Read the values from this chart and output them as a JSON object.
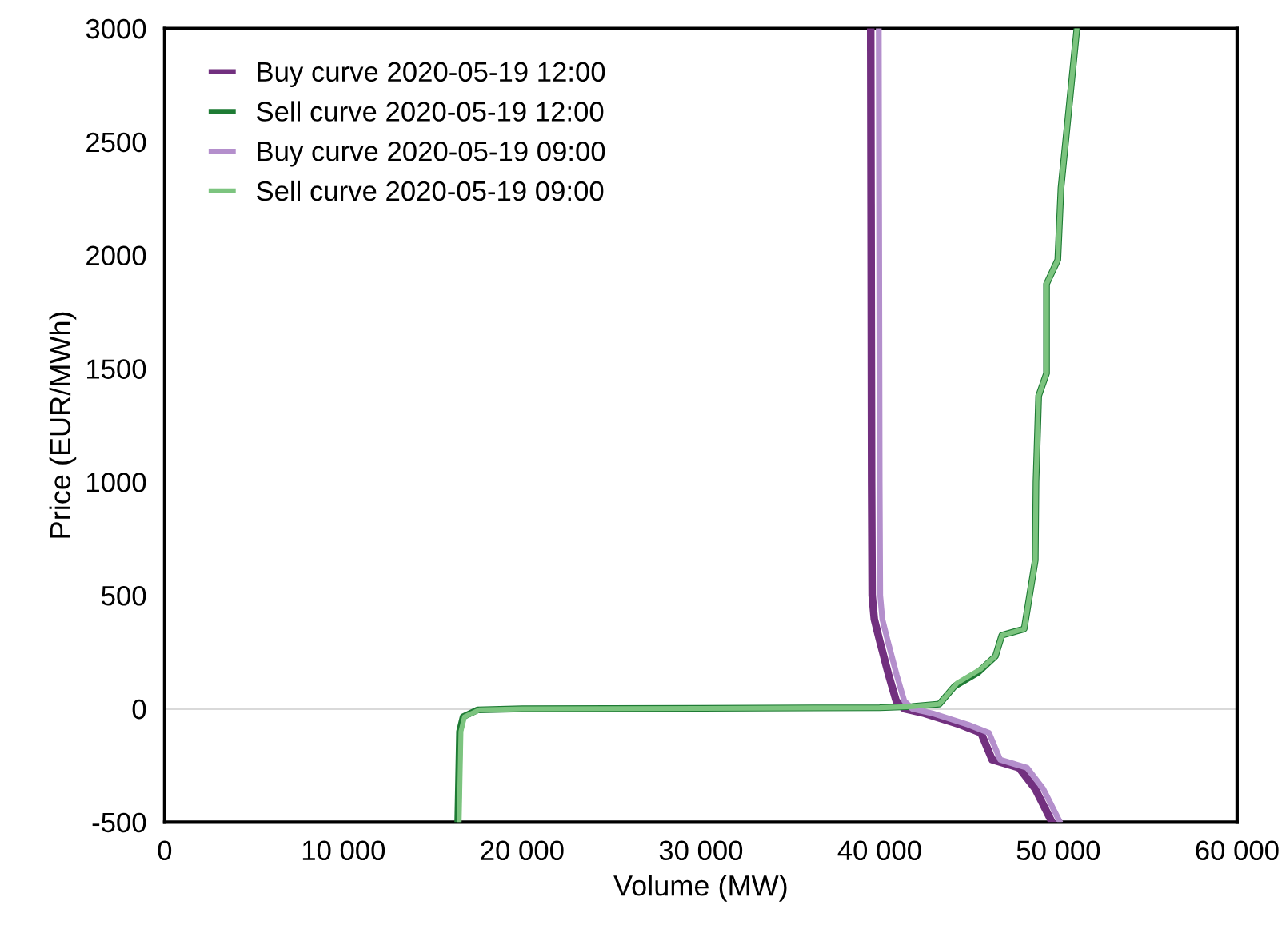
{
  "chart_data": {
    "type": "line",
    "xlabel": "Volume (MW)",
    "ylabel": "Price (EUR/MWh)",
    "xlim": [
      0,
      60000
    ],
    "ylim": [
      -500,
      3000
    ],
    "xticks": [
      0,
      {
        "value": 10000,
        "label": "10 000"
      },
      {
        "value": 20000,
        "label": "20 000"
      },
      {
        "value": 30000,
        "label": "30 000"
      },
      {
        "value": 40000,
        "label": "40 000"
      },
      {
        "value": 50000,
        "label": "50 000"
      },
      {
        "value": 60000,
        "label": "60 000"
      }
    ],
    "yticks": [
      -500,
      0,
      500,
      1000,
      1500,
      2000,
      2500,
      3000
    ],
    "grid": false,
    "legend": "top left",
    "ref_lines": [
      {
        "axis": "y",
        "value": 0,
        "color": "#d9d9d9"
      }
    ],
    "series": [
      {
        "name": "Buy curve 2020-05-19 12:00",
        "color": "#72307f",
        "x": [
          39500,
          39550,
          39580,
          39700,
          40000,
          40500,
          40925,
          41370,
          42500,
          44500,
          45670,
          46300,
          47800,
          48700,
          49600
        ],
        "values": [
          3000,
          1000,
          500,
          395,
          300,
          150,
          35,
          0,
          -20,
          -70,
          -106,
          -225,
          -260,
          -352,
          -493
        ]
      },
      {
        "name": "Sell curve 2020-05-19 12:00",
        "color": "#1e7b34",
        "x": [
          16400,
          16500,
          16700,
          17500,
          20000,
          30000,
          40000,
          41820,
          43340,
          44200,
          45500,
          46480,
          46840,
          48090,
          48710,
          48750,
          48900,
          49340,
          49340,
          49970,
          50150,
          51040
        ],
        "values": [
          -500,
          -100,
          -35,
          -5,
          0,
          2,
          5,
          10,
          21,
          100,
          160,
          232,
          324,
          352,
          655,
          1000,
          1380,
          1479,
          1873,
          1979,
          2296,
          3000
        ]
      },
      {
        "name": "Buy curve 2020-05-19 09:00",
        "color": "#b48fcc",
        "x": [
          39950,
          40000,
          40030,
          40150,
          40450,
          40950,
          41375,
          41820,
          42950,
          44950,
          46120,
          46750,
          48250,
          49150,
          50050
        ],
        "values": [
          3000,
          1000,
          500,
          395,
          300,
          150,
          35,
          0,
          -20,
          -70,
          -106,
          -225,
          -260,
          -352,
          -493
        ]
      },
      {
        "name": "Sell curve 2020-05-19 09:00",
        "color": "#7cc47f",
        "x": [
          16480,
          16580,
          16780,
          17600,
          20000,
          30000,
          40000,
          41820,
          43340,
          44330,
          45670,
          46480,
          46840,
          48090,
          48710,
          48750,
          48900,
          49340,
          49340,
          49970,
          50150,
          51040
        ],
        "values": [
          -500,
          -100,
          -35,
          -5,
          0,
          2,
          5,
          10,
          21,
          113,
          176,
          232,
          324,
          352,
          655,
          1000,
          1380,
          1479,
          1873,
          1979,
          2296,
          3000
        ]
      }
    ]
  }
}
